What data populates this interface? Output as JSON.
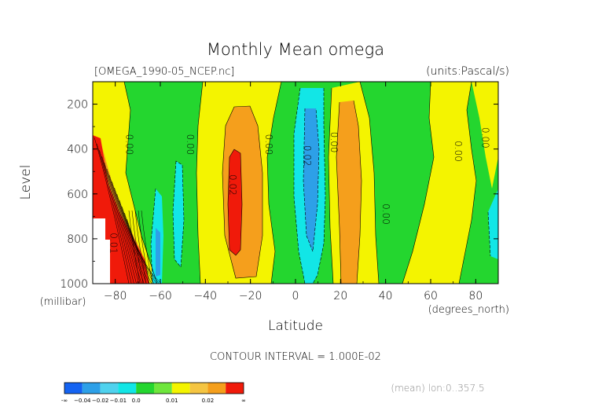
{
  "chart_data": {
    "type": "contour",
    "title": "Monthly Mean omega",
    "file_label": "[OMEGA_1990-05_NCEP.nc]",
    "units_label": "(units:Pascal/s)",
    "xlabel": "Latitude",
    "x_units": "(degrees_north)",
    "ylabel": "Level",
    "y_units": "(millibar)",
    "xlim": [
      -90,
      90
    ],
    "ylim": [
      1000,
      100
    ],
    "x_ticks": [
      -80,
      -60,
      -40,
      -20,
      0,
      20,
      40,
      60,
      80
    ],
    "x_tick_labels": [
      "−80",
      "−60",
      "−40",
      "−20",
      "0",
      "20",
      "40",
      "60",
      "80"
    ],
    "y_ticks": [
      200,
      400,
      600,
      800,
      1000
    ],
    "y_tick_labels": [
      "200",
      "400",
      "600",
      "800",
      "1000"
    ],
    "contour_interval_text": "CONTOUR INTERVAL = 1.000E-02",
    "mean_note": "(mean) lon:0..357.5",
    "contour_labels": [
      {
        "text": "0.00",
        "lat": -74,
        "level": 380
      },
      {
        "text": "0.00",
        "lat": -47,
        "level": 380
      },
      {
        "text": "0.02",
        "lat": -28,
        "level": 560
      },
      {
        "text": "0.00",
        "lat": -12,
        "level": 380
      },
      {
        "text": "0.02",
        "lat": 5,
        "level": 430
      },
      {
        "text": "0.00",
        "lat": 17,
        "level": 370
      },
      {
        "text": "0.00",
        "lat": 40,
        "level": 690
      },
      {
        "text": "0.00",
        "lat": 72,
        "level": 410
      },
      {
        "text": "0.00",
        "lat": 84,
        "level": 350
      },
      {
        "text": "0.01",
        "lat": -81,
        "level": 820
      }
    ],
    "colorbar": {
      "colors": [
        "#1463f2",
        "#2da0e8",
        "#4fd2ee",
        "#12e6e6",
        "#24d62f",
        "#6ee63c",
        "#f4f400",
        "#f5c542",
        "#f59f1c",
        "#f01a0a"
      ],
      "labels": [
        "-∞",
        "−0.04",
        "−0.02",
        "−0.01",
        "0.0",
        "0.01",
        "0.02",
        "∞"
      ]
    }
  }
}
